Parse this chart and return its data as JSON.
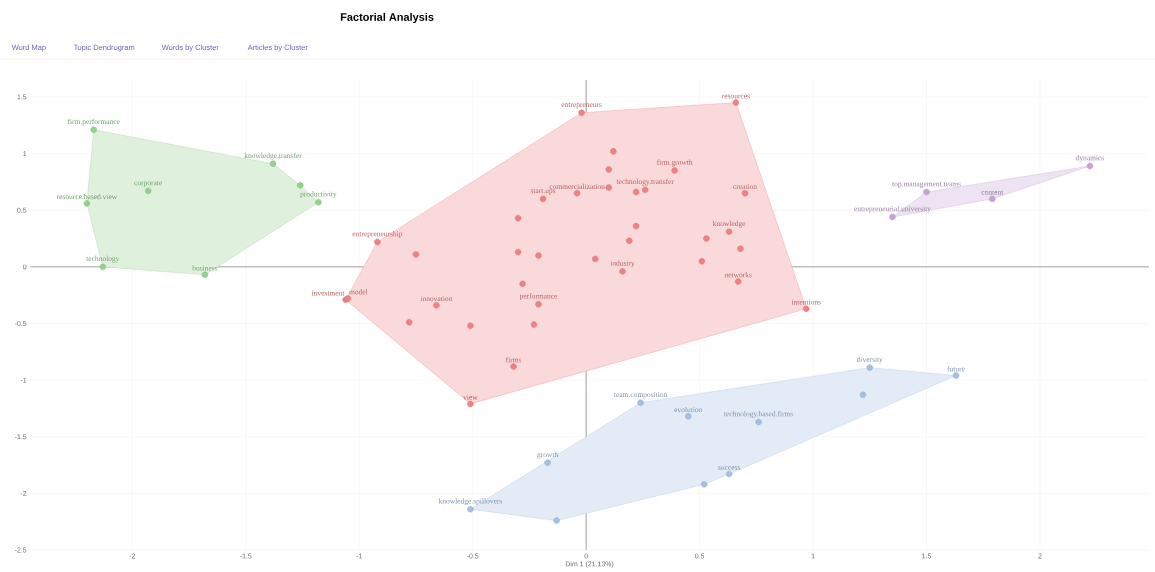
{
  "chart_data": {
    "type": "scatter",
    "title": "Factorial Analysis",
    "xlabel": "Dim 1 (21.13%)",
    "xlim": [
      -2.45,
      2.48
    ],
    "ylim": [
      -2.5,
      1.65
    ],
    "xticks": [
      -2,
      -1.5,
      -1,
      -0.5,
      0,
      0.5,
      1,
      1.5,
      2
    ],
    "yticks": [
      -2.5,
      -2,
      -1.5,
      -1,
      -0.5,
      0,
      0.5,
      1,
      1.5
    ],
    "grid": true,
    "marker": "circle",
    "series": [
      {
        "color": "#93d18d",
        "x": [
          -2.17,
          -2.2,
          -1.93,
          -1.38,
          -1.26,
          -1.18,
          -2.13,
          -1.68
        ],
        "values": [
          1.21,
          0.56,
          0.67,
          0.91,
          0.72,
          0.57,
          0.0,
          -0.07
        ]
      },
      {
        "color": "#ef8183",
        "x": [
          -0.02,
          0.66,
          0.12,
          0.39,
          0.1,
          0.1,
          -0.04,
          0.22,
          0.26,
          0.7,
          -0.19,
          -0.3,
          0.63,
          0.22,
          0.19,
          0.53,
          0.68,
          -0.92,
          -0.75,
          -0.3,
          -0.21,
          0.04,
          0.51,
          0.16,
          0.67,
          -0.28,
          -1.06,
          -1.05,
          -0.66,
          -0.21,
          -0.78,
          -0.51,
          -0.23,
          0.97,
          -0.32,
          -0.51
        ],
        "values": [
          1.36,
          1.45,
          1.02,
          0.85,
          0.86,
          0.7,
          0.65,
          0.66,
          0.68,
          0.65,
          0.6,
          0.43,
          0.31,
          0.36,
          0.23,
          0.25,
          0.16,
          0.22,
          0.11,
          0.13,
          0.1,
          0.07,
          0.05,
          -0.04,
          -0.13,
          -0.15,
          -0.29,
          -0.28,
          -0.34,
          -0.33,
          -0.49,
          -0.52,
          -0.51,
          -0.37,
          -0.88,
          -1.21
        ]
      },
      {
        "color": "#a3c0e2",
        "x": [
          1.25,
          1.63,
          1.22,
          0.24,
          0.45,
          0.76,
          -0.17,
          0.63,
          0.52,
          -0.51,
          -0.13
        ],
        "values": [
          -0.89,
          -0.96,
          -1.13,
          -1.2,
          -1.32,
          -1.37,
          -1.73,
          -1.83,
          -1.92,
          -2.14,
          -2.24
        ]
      },
      {
        "color": "#c7a3d4",
        "x": [
          2.22,
          1.5,
          1.79,
          1.35
        ],
        "values": [
          0.89,
          0.66,
          0.6,
          0.44
        ]
      }
    ],
    "annotations": [
      "Word Map",
      "Topic Dendrogram",
      "Words by Cluster",
      "Articles by Cluster",
      {
        "text": "firm.performance",
        "x": -2.17,
        "y": 1.21
      },
      {
        "text": "resource.based.view",
        "x": -2.2,
        "y": 0.56
      },
      {
        "text": "corporate",
        "x": -1.93,
        "y": 0.67
      },
      {
        "text": "knowledge.transfer",
        "x": -1.38,
        "y": 0.91
      },
      {
        "text": "productivity",
        "x": -1.18,
        "y": 0.57
      },
      {
        "text": "technology",
        "x": -2.13,
        "y": 0.0
      },
      {
        "text": "business",
        "x": -1.68,
        "y": -0.07
      },
      {
        "text": "entrepreneurs",
        "x": -0.02,
        "y": 1.36
      },
      {
        "text": "resources",
        "x": 0.66,
        "y": 1.45
      },
      {
        "text": "firm.growth",
        "x": 0.39,
        "y": 0.85
      },
      {
        "text": "commercialization",
        "x": -0.04,
        "y": 0.65
      },
      {
        "text": "technology.transfer",
        "x": 0.26,
        "y": 0.68
      },
      {
        "text": "creation",
        "x": 0.7,
        "y": 0.65
      },
      {
        "text": "start.ups",
        "x": -0.19,
        "y": 0.6
      },
      {
        "text": "knowledge",
        "x": 0.63,
        "y": 0.31
      },
      {
        "text": "entrepreneurship",
        "x": -0.92,
        "y": 0.22
      },
      {
        "text": "industry",
        "x": 0.16,
        "y": -0.04
      },
      {
        "text": "networks",
        "x": 0.67,
        "y": -0.13
      },
      {
        "text": "investment",
        "x": -1.06,
        "y": -0.29
      },
      {
        "text": "model",
        "x": -1.05,
        "y": -0.28
      },
      {
        "text": "innovation",
        "x": -0.66,
        "y": -0.34
      },
      {
        "text": "performance",
        "x": -0.21,
        "y": -0.33
      },
      {
        "text": "intentions",
        "x": 0.97,
        "y": -0.37
      },
      {
        "text": "firms",
        "x": -0.32,
        "y": -0.88
      },
      {
        "text": "view",
        "x": -0.51,
        "y": -1.21
      },
      {
        "text": "diversity",
        "x": 1.25,
        "y": -0.89
      },
      {
        "text": "future",
        "x": 1.63,
        "y": -0.96
      },
      {
        "text": "team.composition",
        "x": 0.24,
        "y": -1.2
      },
      {
        "text": "evolution",
        "x": 0.45,
        "y": -1.32
      },
      {
        "text": "technology.based.firms",
        "x": 0.76,
        "y": -1.37
      },
      {
        "text": "growth",
        "x": -0.17,
        "y": -1.73
      },
      {
        "text": "success",
        "x": 0.63,
        "y": -1.83
      },
      {
        "text": "knowledge.spillovers",
        "x": -0.51,
        "y": -2.14
      },
      {
        "text": "dynamics",
        "x": 2.22,
        "y": 0.89
      },
      {
        "text": "top.management.teams",
        "x": 1.5,
        "y": 0.66
      },
      {
        "text": "content",
        "x": 1.79,
        "y": 0.6
      },
      {
        "text": "entrepreneurial.university",
        "x": 1.35,
        "y": 0.44
      }
    ]
  }
}
